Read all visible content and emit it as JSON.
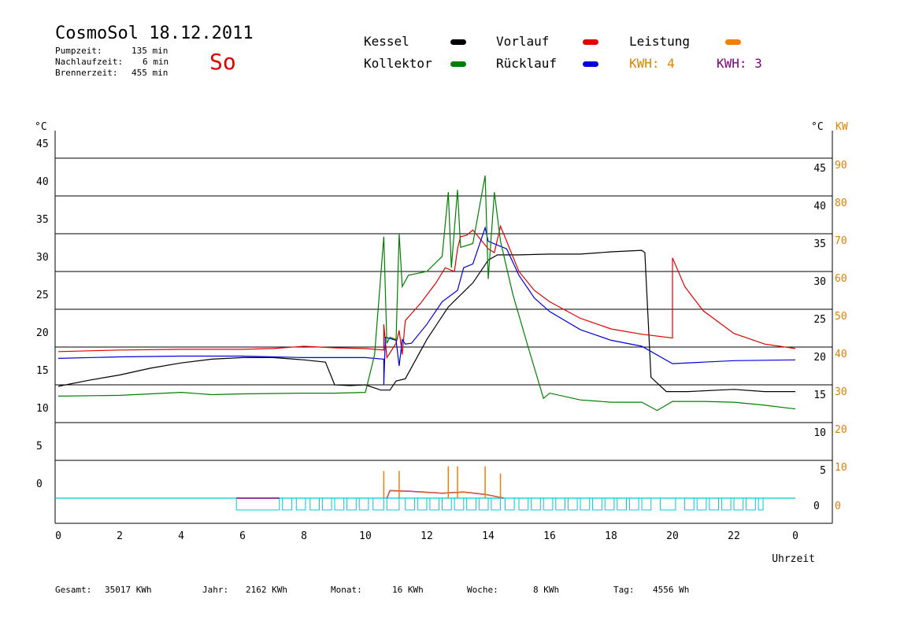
{
  "header": {
    "title": "CosmoSol 18.12.2011",
    "day": "So",
    "info": [
      {
        "label": "Pumpzeit:",
        "value": "135 min"
      },
      {
        "label": "Nachlaufzeit:",
        "value": "6 min"
      },
      {
        "label": "Brennerzeit:",
        "value": "455 min"
      }
    ]
  },
  "legend": {
    "kessel": {
      "label": "Kessel",
      "color": "#000000"
    },
    "vorlauf": {
      "label": "Vorlauf",
      "color": "#e00000"
    },
    "leistung": {
      "label": "Leistung",
      "color": "#f08000"
    },
    "kollektor": {
      "label": "Kollektor",
      "color": "#008000"
    },
    "ruecklauf": {
      "label": "Rücklauf",
      "color": "#0000e0"
    },
    "kwh1": {
      "label": "KWH: 4",
      "color": "#e08000"
    },
    "kwh2": {
      "label": "KWH: 3",
      "color": "#800080"
    }
  },
  "footer": [
    {
      "label": "Gesamt:",
      "value": "35017 KWh"
    },
    {
      "label": "Jahr:",
      "value": "2162 KWh"
    },
    {
      "label": "Monat:",
      "value": "16 KWh"
    },
    {
      "label": "Woche:",
      "value": "8 KWh"
    },
    {
      "label": "Tag:",
      "value": "4556 Wh"
    }
  ],
  "chart_data": {
    "type": "line",
    "xlabel": "Uhrzeit",
    "ylabel_left": "°C",
    "ylabel_right_temp": "°C",
    "ylabel_right_power": "KW",
    "x_ticks": [
      "0",
      "2",
      "4",
      "6",
      "8",
      "10",
      "12",
      "14",
      "16",
      "18",
      "20",
      "22",
      "0"
    ],
    "y_ticks_left": [
      "45",
      "40",
      "35",
      "30",
      "25",
      "20",
      "15",
      "10",
      "5",
      "0"
    ],
    "y_ticks_right_temp": [
      "45",
      "40",
      "35",
      "30",
      "25",
      "20",
      "15",
      "10",
      "5",
      "0"
    ],
    "y_ticks_right_power": [
      "90",
      "80",
      "70",
      "60",
      "50",
      "40",
      "30",
      "20",
      "10",
      "0"
    ],
    "xlim": [
      0,
      24
    ],
    "ylim": [
      -3,
      48
    ],
    "series": [
      {
        "name": "Kessel",
        "color": "#000000",
        "points": [
          [
            0,
            14.8
          ],
          [
            1,
            15.6
          ],
          [
            2,
            16.3
          ],
          [
            3,
            17.2
          ],
          [
            4,
            17.9
          ],
          [
            5,
            18.4
          ],
          [
            6,
            18.6
          ],
          [
            7,
            18.6
          ],
          [
            8,
            18.3
          ],
          [
            8.7,
            18.0
          ],
          [
            9.0,
            15.0
          ],
          [
            9.5,
            14.9
          ],
          [
            10.0,
            15.0
          ],
          [
            10.5,
            14.3
          ],
          [
            10.8,
            14.3
          ],
          [
            11.0,
            15.5
          ],
          [
            11.3,
            15.8
          ],
          [
            12.0,
            21.0
          ],
          [
            12.7,
            25.3
          ],
          [
            13.5,
            28.5
          ],
          [
            14.0,
            31.5
          ],
          [
            14.3,
            32.2
          ],
          [
            15.0,
            32.2
          ],
          [
            16.0,
            32.3
          ],
          [
            17.0,
            32.3
          ],
          [
            18.0,
            32.6
          ],
          [
            19.0,
            32.8
          ],
          [
            19.1,
            32.5
          ],
          [
            19.3,
            16.0
          ],
          [
            19.8,
            14.1
          ],
          [
            20.5,
            14.1
          ],
          [
            21.5,
            14.3
          ],
          [
            22.0,
            14.4
          ],
          [
            23.0,
            14.1
          ],
          [
            24,
            14.1
          ]
        ]
      },
      {
        "name": "Vorlauf",
        "color": "#e00000",
        "points": [
          [
            0,
            19.4
          ],
          [
            2,
            19.6
          ],
          [
            4,
            19.7
          ],
          [
            6,
            19.7
          ],
          [
            7,
            19.8
          ],
          [
            8,
            20.1
          ],
          [
            9,
            19.9
          ],
          [
            10,
            19.8
          ],
          [
            10.6,
            19.6
          ],
          [
            10.6,
            23.0
          ],
          [
            10.7,
            18.6
          ],
          [
            11.0,
            20.5
          ],
          [
            11.1,
            22.2
          ],
          [
            11.2,
            19.0
          ],
          [
            11.3,
            23.5
          ],
          [
            11.8,
            25.8
          ],
          [
            12.3,
            28.5
          ],
          [
            12.6,
            30.5
          ],
          [
            12.9,
            30.0
          ],
          [
            13.0,
            33.0
          ],
          [
            13.1,
            34.6
          ],
          [
            13.3,
            34.8
          ],
          [
            13.5,
            35.5
          ],
          [
            13.8,
            34.0
          ],
          [
            14.0,
            33.0
          ],
          [
            14.2,
            32.5
          ],
          [
            14.4,
            36.0
          ],
          [
            14.7,
            33.0
          ],
          [
            15.0,
            30.0
          ],
          [
            15.5,
            27.5
          ],
          [
            16.0,
            26.0
          ],
          [
            17.0,
            23.8
          ],
          [
            18.0,
            22.4
          ],
          [
            19.0,
            21.7
          ],
          [
            20.0,
            21.2
          ],
          [
            20.0,
            31.8
          ],
          [
            20.4,
            28.0
          ],
          [
            21.0,
            24.8
          ],
          [
            22.0,
            21.8
          ],
          [
            23.0,
            20.4
          ],
          [
            24,
            19.8
          ]
        ]
      },
      {
        "name": "Rücklauf",
        "color": "#0000e0",
        "points": [
          [
            0,
            18.5
          ],
          [
            2,
            18.7
          ],
          [
            4,
            18.8
          ],
          [
            6,
            18.8
          ],
          [
            8,
            18.6
          ],
          [
            10.0,
            18.6
          ],
          [
            10.6,
            18.4
          ],
          [
            10.6,
            15.0
          ],
          [
            10.65,
            21.3
          ],
          [
            11.0,
            20.9
          ],
          [
            11.1,
            17.5
          ],
          [
            11.2,
            21.0
          ],
          [
            11.3,
            20.4
          ],
          [
            11.5,
            20.5
          ],
          [
            12.0,
            23.0
          ],
          [
            12.5,
            26.0
          ],
          [
            13.0,
            27.5
          ],
          [
            13.2,
            30.5
          ],
          [
            13.5,
            31.0
          ],
          [
            13.9,
            35.8
          ],
          [
            14.0,
            34.0
          ],
          [
            14.3,
            33.5
          ],
          [
            14.6,
            33.0
          ],
          [
            15.0,
            29.5
          ],
          [
            15.5,
            26.5
          ],
          [
            16.0,
            24.7
          ],
          [
            17.0,
            22.3
          ],
          [
            18.0,
            20.9
          ],
          [
            19.0,
            20.1
          ],
          [
            20.0,
            17.8
          ],
          [
            21.0,
            18.0
          ],
          [
            22.0,
            18.2
          ],
          [
            24,
            18.3
          ]
        ]
      },
      {
        "name": "Kollektor",
        "color": "#008000",
        "points": [
          [
            0,
            13.5
          ],
          [
            2,
            13.6
          ],
          [
            4,
            14.0
          ],
          [
            5,
            13.7
          ],
          [
            6,
            13.8
          ],
          [
            8,
            13.9
          ],
          [
            9,
            13.9
          ],
          [
            10,
            14.0
          ],
          [
            10.3,
            19.0
          ],
          [
            10.6,
            34.6
          ],
          [
            10.7,
            20.5
          ],
          [
            10.8,
            21.3
          ],
          [
            11.0,
            21.0
          ],
          [
            11.1,
            35.0
          ],
          [
            11.2,
            28.0
          ],
          [
            11.4,
            29.5
          ],
          [
            12.0,
            30.0
          ],
          [
            12.5,
            32.0
          ],
          [
            12.7,
            40.5
          ],
          [
            12.8,
            30.5
          ],
          [
            13.0,
            40.8
          ],
          [
            13.1,
            33.2
          ],
          [
            13.5,
            33.7
          ],
          [
            13.9,
            42.7
          ],
          [
            14.0,
            29.0
          ],
          [
            14.2,
            40.5
          ],
          [
            14.4,
            34.0
          ],
          [
            14.8,
            27.0
          ],
          [
            15.3,
            20.0
          ],
          [
            15.8,
            13.2
          ],
          [
            16.0,
            13.9
          ],
          [
            17.0,
            13.0
          ],
          [
            18.0,
            12.7
          ],
          [
            19.0,
            12.7
          ],
          [
            19.5,
            11.6
          ],
          [
            20.0,
            12.8
          ],
          [
            21.0,
            12.8
          ],
          [
            22.0,
            12.7
          ],
          [
            23.0,
            12.3
          ],
          [
            24,
            11.8
          ]
        ]
      }
    ],
    "power": {
      "name": "Leistung",
      "color": "#f08000",
      "peaks_kw": [
        [
          10.6,
          7.2
        ],
        [
          11.1,
          7.2
        ],
        [
          12.7,
          8.4
        ],
        [
          13.0,
          8.4
        ],
        [
          13.9,
          8.4
        ],
        [
          14.4,
          6.5
        ]
      ],
      "band_kw": [
        [
          10.7,
          0
        ],
        [
          10.8,
          2.0
        ],
        [
          11.5,
          1.8
        ],
        [
          12.5,
          1.3
        ],
        [
          13.2,
          1.6
        ],
        [
          13.9,
          1.0
        ],
        [
          14.5,
          0
        ]
      ]
    },
    "pump_intervals": [
      [
        5.8,
        7.2
      ],
      [
        7.3,
        7.6
      ],
      [
        7.75,
        8.05
      ],
      [
        8.2,
        8.5
      ],
      [
        8.6,
        8.9
      ],
      [
        9.0,
        9.3
      ],
      [
        9.4,
        9.7
      ],
      [
        9.8,
        10.1
      ],
      [
        10.25,
        10.6
      ],
      [
        10.7,
        11.1
      ],
      [
        11.3,
        11.6
      ],
      [
        11.7,
        12.0
      ],
      [
        12.1,
        12.4
      ],
      [
        12.5,
        12.8
      ],
      [
        12.9,
        13.2
      ],
      [
        13.3,
        13.6
      ],
      [
        13.7,
        14.0
      ],
      [
        14.1,
        14.4
      ],
      [
        14.55,
        14.85
      ],
      [
        15.0,
        15.3
      ],
      [
        15.4,
        15.7
      ],
      [
        15.8,
        16.1
      ],
      [
        16.2,
        16.5
      ],
      [
        16.6,
        16.9
      ],
      [
        17.0,
        17.3
      ],
      [
        17.4,
        17.7
      ],
      [
        17.8,
        18.1
      ],
      [
        18.2,
        18.5
      ],
      [
        18.6,
        18.9
      ],
      [
        19.0,
        19.3
      ],
      [
        19.6,
        20.1
      ],
      [
        20.4,
        20.7
      ],
      [
        20.8,
        21.1
      ],
      [
        21.2,
        21.5
      ],
      [
        21.6,
        21.9
      ],
      [
        22.0,
        22.3
      ],
      [
        22.4,
        22.7
      ],
      [
        22.8,
        22.95
      ]
    ]
  }
}
